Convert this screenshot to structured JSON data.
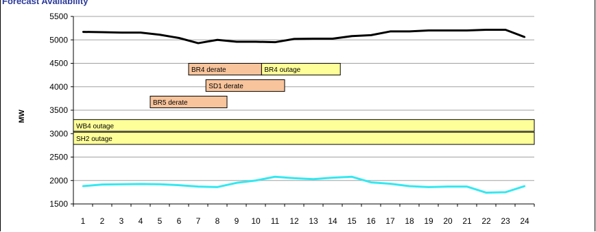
{
  "title": "Forecast Availability",
  "colors": {
    "demand_line": "#000000",
    "lower_line": "#33e8f0",
    "derate_fill": "#f8c49c",
    "outage_fill": "#ffff99",
    "gridline": "#a0a0a0",
    "box_border": "#000000"
  },
  "chart_data": {
    "type": "line",
    "ylabel": "MW",
    "ylim": [
      1500,
      5500
    ],
    "yticks": [
      1500,
      2000,
      2500,
      3000,
      3500,
      4000,
      4500,
      5000,
      5500
    ],
    "x": [
      1,
      2,
      3,
      4,
      5,
      6,
      7,
      8,
      9,
      10,
      11,
      12,
      13,
      14,
      15,
      16,
      17,
      18,
      19,
      20,
      21,
      22,
      23,
      24
    ],
    "grid": "horizontal",
    "series": [
      {
        "color": "#000000",
        "values": [
          5170,
          5165,
          5155,
          5155,
          5110,
          5040,
          4930,
          5000,
          4960,
          4960,
          4950,
          5020,
          5025,
          5025,
          5080,
          5100,
          5180,
          5180,
          5200,
          5200,
          5200,
          5215,
          5215,
          5060
        ]
      },
      {
        "color": "#33e8f0",
        "values": [
          1880,
          1915,
          1920,
          1925,
          1920,
          1900,
          1870,
          1860,
          1950,
          2000,
          2080,
          2050,
          2030,
          2060,
          2080,
          1960,
          1930,
          1880,
          1860,
          1870,
          1870,
          1740,
          1750,
          1880
        ]
      }
    ],
    "events": [
      {
        "label": "BR4 derate",
        "kind": "derate",
        "start": 6.5,
        "end": 10.3,
        "y_low": 4250,
        "y_high": 4500
      },
      {
        "label": "BR4 outage",
        "kind": "outage",
        "start": 10.3,
        "end": 14.4,
        "y_low": 4250,
        "y_high": 4500
      },
      {
        "label": "SD1 derate",
        "kind": "derate",
        "start": 7.4,
        "end": 11.5,
        "y_low": 3900,
        "y_high": 4150
      },
      {
        "label": "BR5 derate",
        "kind": "derate",
        "start": 4.5,
        "end": 8.5,
        "y_low": 3550,
        "y_high": 3800
      },
      {
        "label": "WB4 outage",
        "kind": "outage",
        "start": 0.5,
        "end": 24.5,
        "y_low": 3050,
        "y_high": 3300
      },
      {
        "label": "SH2 outage",
        "kind": "outage",
        "start": 0.5,
        "end": 24.5,
        "y_low": 2770,
        "y_high": 3030
      }
    ]
  }
}
